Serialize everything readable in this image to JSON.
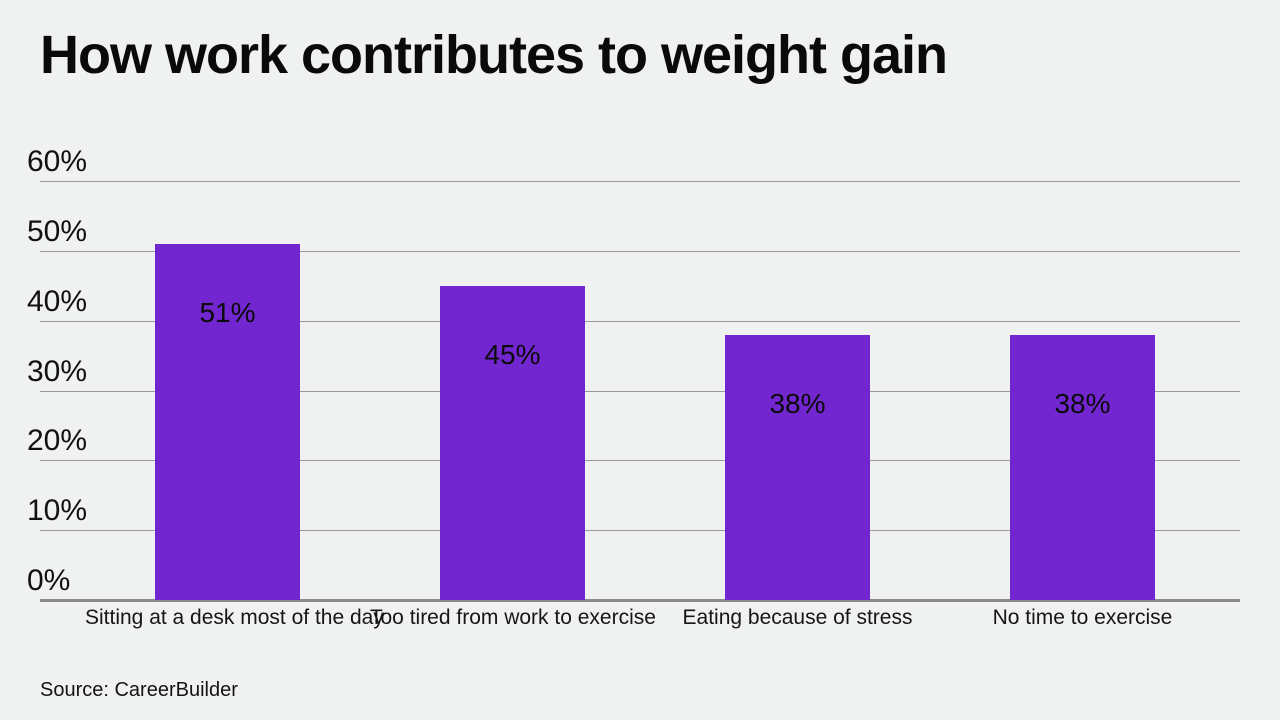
{
  "header": {
    "title": "How work contributes to weight gain"
  },
  "footer": {
    "source": "Source: CareerBuilder"
  },
  "colors": {
    "background": "#F0F1F1",
    "bar": "#7226D0",
    "gridline": "#9A9A9A",
    "baseline": "#8A8A8A",
    "text": "#0A0A0A"
  },
  "chart_data": {
    "type": "bar",
    "title": "How work contributes to weight gain",
    "categories": [
      "Sitting at a desk most of the day",
      "Too tired from work to exercise",
      "Eating because of stress",
      "No time to exercise"
    ],
    "values": [
      51,
      45,
      38,
      38
    ],
    "value_labels": [
      "51%",
      "45%",
      "38%",
      "38%"
    ],
    "xlabel": "",
    "ylabel": "",
    "ylim": [
      0,
      60
    ],
    "ytick_step": 10,
    "ytick_labels": [
      "0%",
      "10%",
      "20%",
      "30%",
      "40%",
      "50%",
      "60%"
    ],
    "grid": true,
    "legend": false,
    "value_label_position": "inside-top",
    "source": "Source: CareerBuilder"
  }
}
